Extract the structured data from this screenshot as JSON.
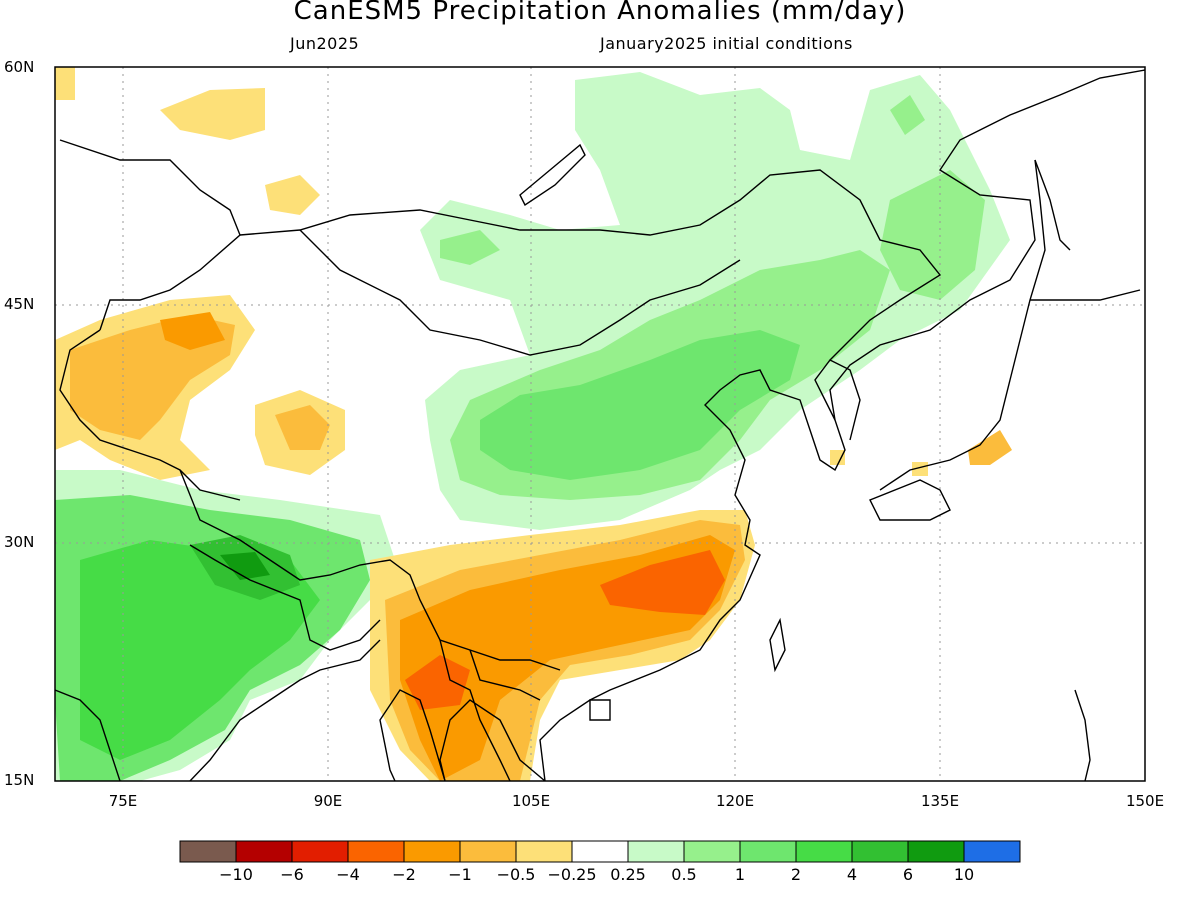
{
  "title": "CanESM5 Precipitation Anomalies (mm/day)",
  "subtitle_left": "Jun2025",
  "subtitle_right": "January2025 initial conditions",
  "lat_labels": [
    "60N",
    "45N",
    "30N",
    "15N"
  ],
  "lon_labels": [
    "75E",
    "90E",
    "105E",
    "120E",
    "135E",
    "150E"
  ],
  "colorbar": {
    "colors": [
      "#7a5a4e",
      "#b40000",
      "#e21e00",
      "#fa6400",
      "#fa9a00",
      "#fbbc3c",
      "#fde078",
      "#ffffff",
      "#c8fac8",
      "#96f08c",
      "#6ee66e",
      "#46dc46",
      "#32c032",
      "#109b10",
      "#1e6ee6"
    ],
    "tick_labels": [
      "-10",
      "-6",
      "-4",
      "-2",
      "-1",
      "-0.5",
      "-0.25",
      "0.25",
      "0.5",
      "1",
      "2",
      "4",
      "6",
      "10"
    ]
  }
}
